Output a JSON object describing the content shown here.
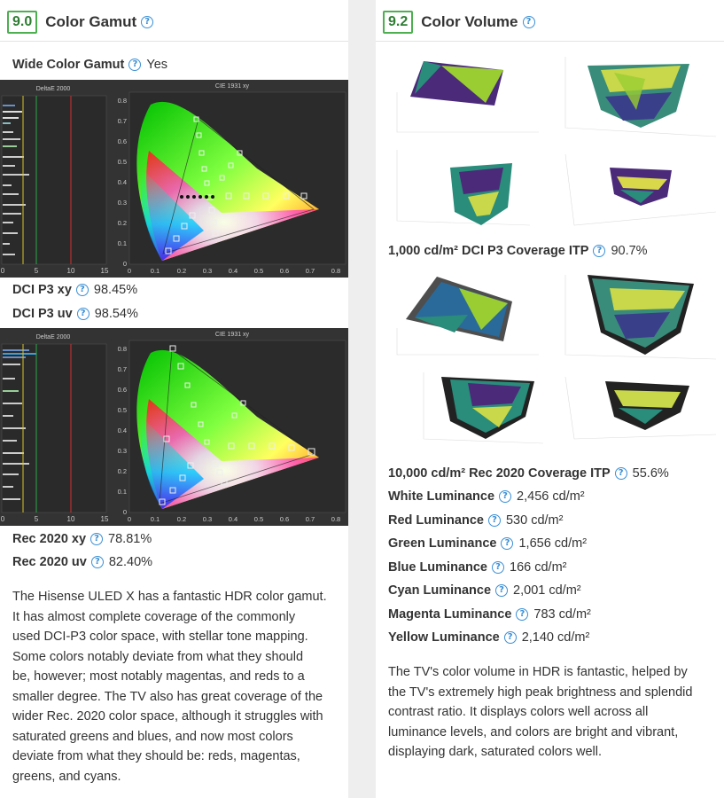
{
  "left": {
    "score": "9.0",
    "title": "Color Gamut",
    "wide_color_gamut": {
      "label": "Wide Color Gamut",
      "value": "Yes"
    },
    "chart1": {
      "deltae_title": "DeltaE 2000",
      "cie_title": "CIE 1931 xy",
      "deltae_ticks": [
        "0",
        "5",
        "10",
        "15"
      ],
      "cie_xticks": [
        "0",
        "0.1",
        "0.2",
        "0.3",
        "0.4",
        "0.5",
        "0.6",
        "0.7",
        "0.8"
      ],
      "cie_yticks": [
        "0",
        "0.1",
        "0.2",
        "0.3",
        "0.4",
        "0.5",
        "0.6",
        "0.7",
        "0.8"
      ]
    },
    "dci_p3_xy": {
      "label": "DCI P3 xy",
      "value": "98.45%"
    },
    "dci_p3_uv": {
      "label": "DCI P3 uv",
      "value": "98.54%"
    },
    "chart2": {
      "deltae_title": "DeltaE 2000",
      "cie_title": "CIE 1931 xy",
      "deltae_ticks": [
        "0",
        "5",
        "10",
        "15"
      ],
      "cie_xticks": [
        "0",
        "0.1",
        "0.2",
        "0.3",
        "0.4",
        "0.5",
        "0.6",
        "0.7",
        "0.8"
      ],
      "cie_yticks": [
        "0",
        "0.1",
        "0.2",
        "0.3",
        "0.4",
        "0.5",
        "0.6",
        "0.7",
        "0.8"
      ]
    },
    "rec2020_xy": {
      "label": "Rec 2020 xy",
      "value": "78.81%"
    },
    "rec2020_uv": {
      "label": "Rec 2020 uv",
      "value": "82.40%"
    },
    "paragraph_lines": [
      "The Hisense ULED X has a fantastic HDR color gamut.",
      "It has almost complete coverage of the commonly",
      "used DCI-P3 color space, with stellar tone mapping.",
      "Some colors notably deviate from what they should",
      "be, however; most notably magentas, and reds to a",
      "smaller degree. The TV also has great coverage of the",
      "wider Rec. 2020 color space, although it struggles with",
      "saturated greens and blues, and now most colors",
      "deviate from what they should be: reds, magentas,",
      "greens, and cyans."
    ]
  },
  "right": {
    "score": "9.2",
    "title": "Color Volume",
    "dci_itp": {
      "label": "1,000 cd/m² DCI P3 Coverage ITP",
      "value": "90.7%"
    },
    "rec_itp": {
      "label": "10,000 cd/m² Rec 2020 Coverage ITP",
      "value": "55.6%"
    },
    "luminance": [
      {
        "label": "White Luminance",
        "value": "2,456 cd/m²"
      },
      {
        "label": "Red Luminance",
        "value": "530 cd/m²"
      },
      {
        "label": "Green Luminance",
        "value": "1,656 cd/m²"
      },
      {
        "label": "Blue Luminance",
        "value": "166 cd/m²"
      },
      {
        "label": "Cyan Luminance",
        "value": "2,001 cd/m²"
      },
      {
        "label": "Magenta Luminance",
        "value": "783 cd/m²"
      },
      {
        "label": "Yellow Luminance",
        "value": "2,140 cd/m²"
      }
    ],
    "paragraph_lines": [
      "The TV's color volume in HDR is fantastic, helped by",
      "the TV's extremely high peak brightness and splendid",
      "contrast ratio. It displays colors well across all",
      "luminance levels, and colors are bright and vibrant,",
      "displaying dark, saturated colors well."
    ]
  },
  "help_glyph": "?",
  "colors": {
    "score_border": "#4caf50",
    "score_text": "#2e7d32",
    "help_icon": "#3a8fd6",
    "chart_bg": "#333333"
  }
}
